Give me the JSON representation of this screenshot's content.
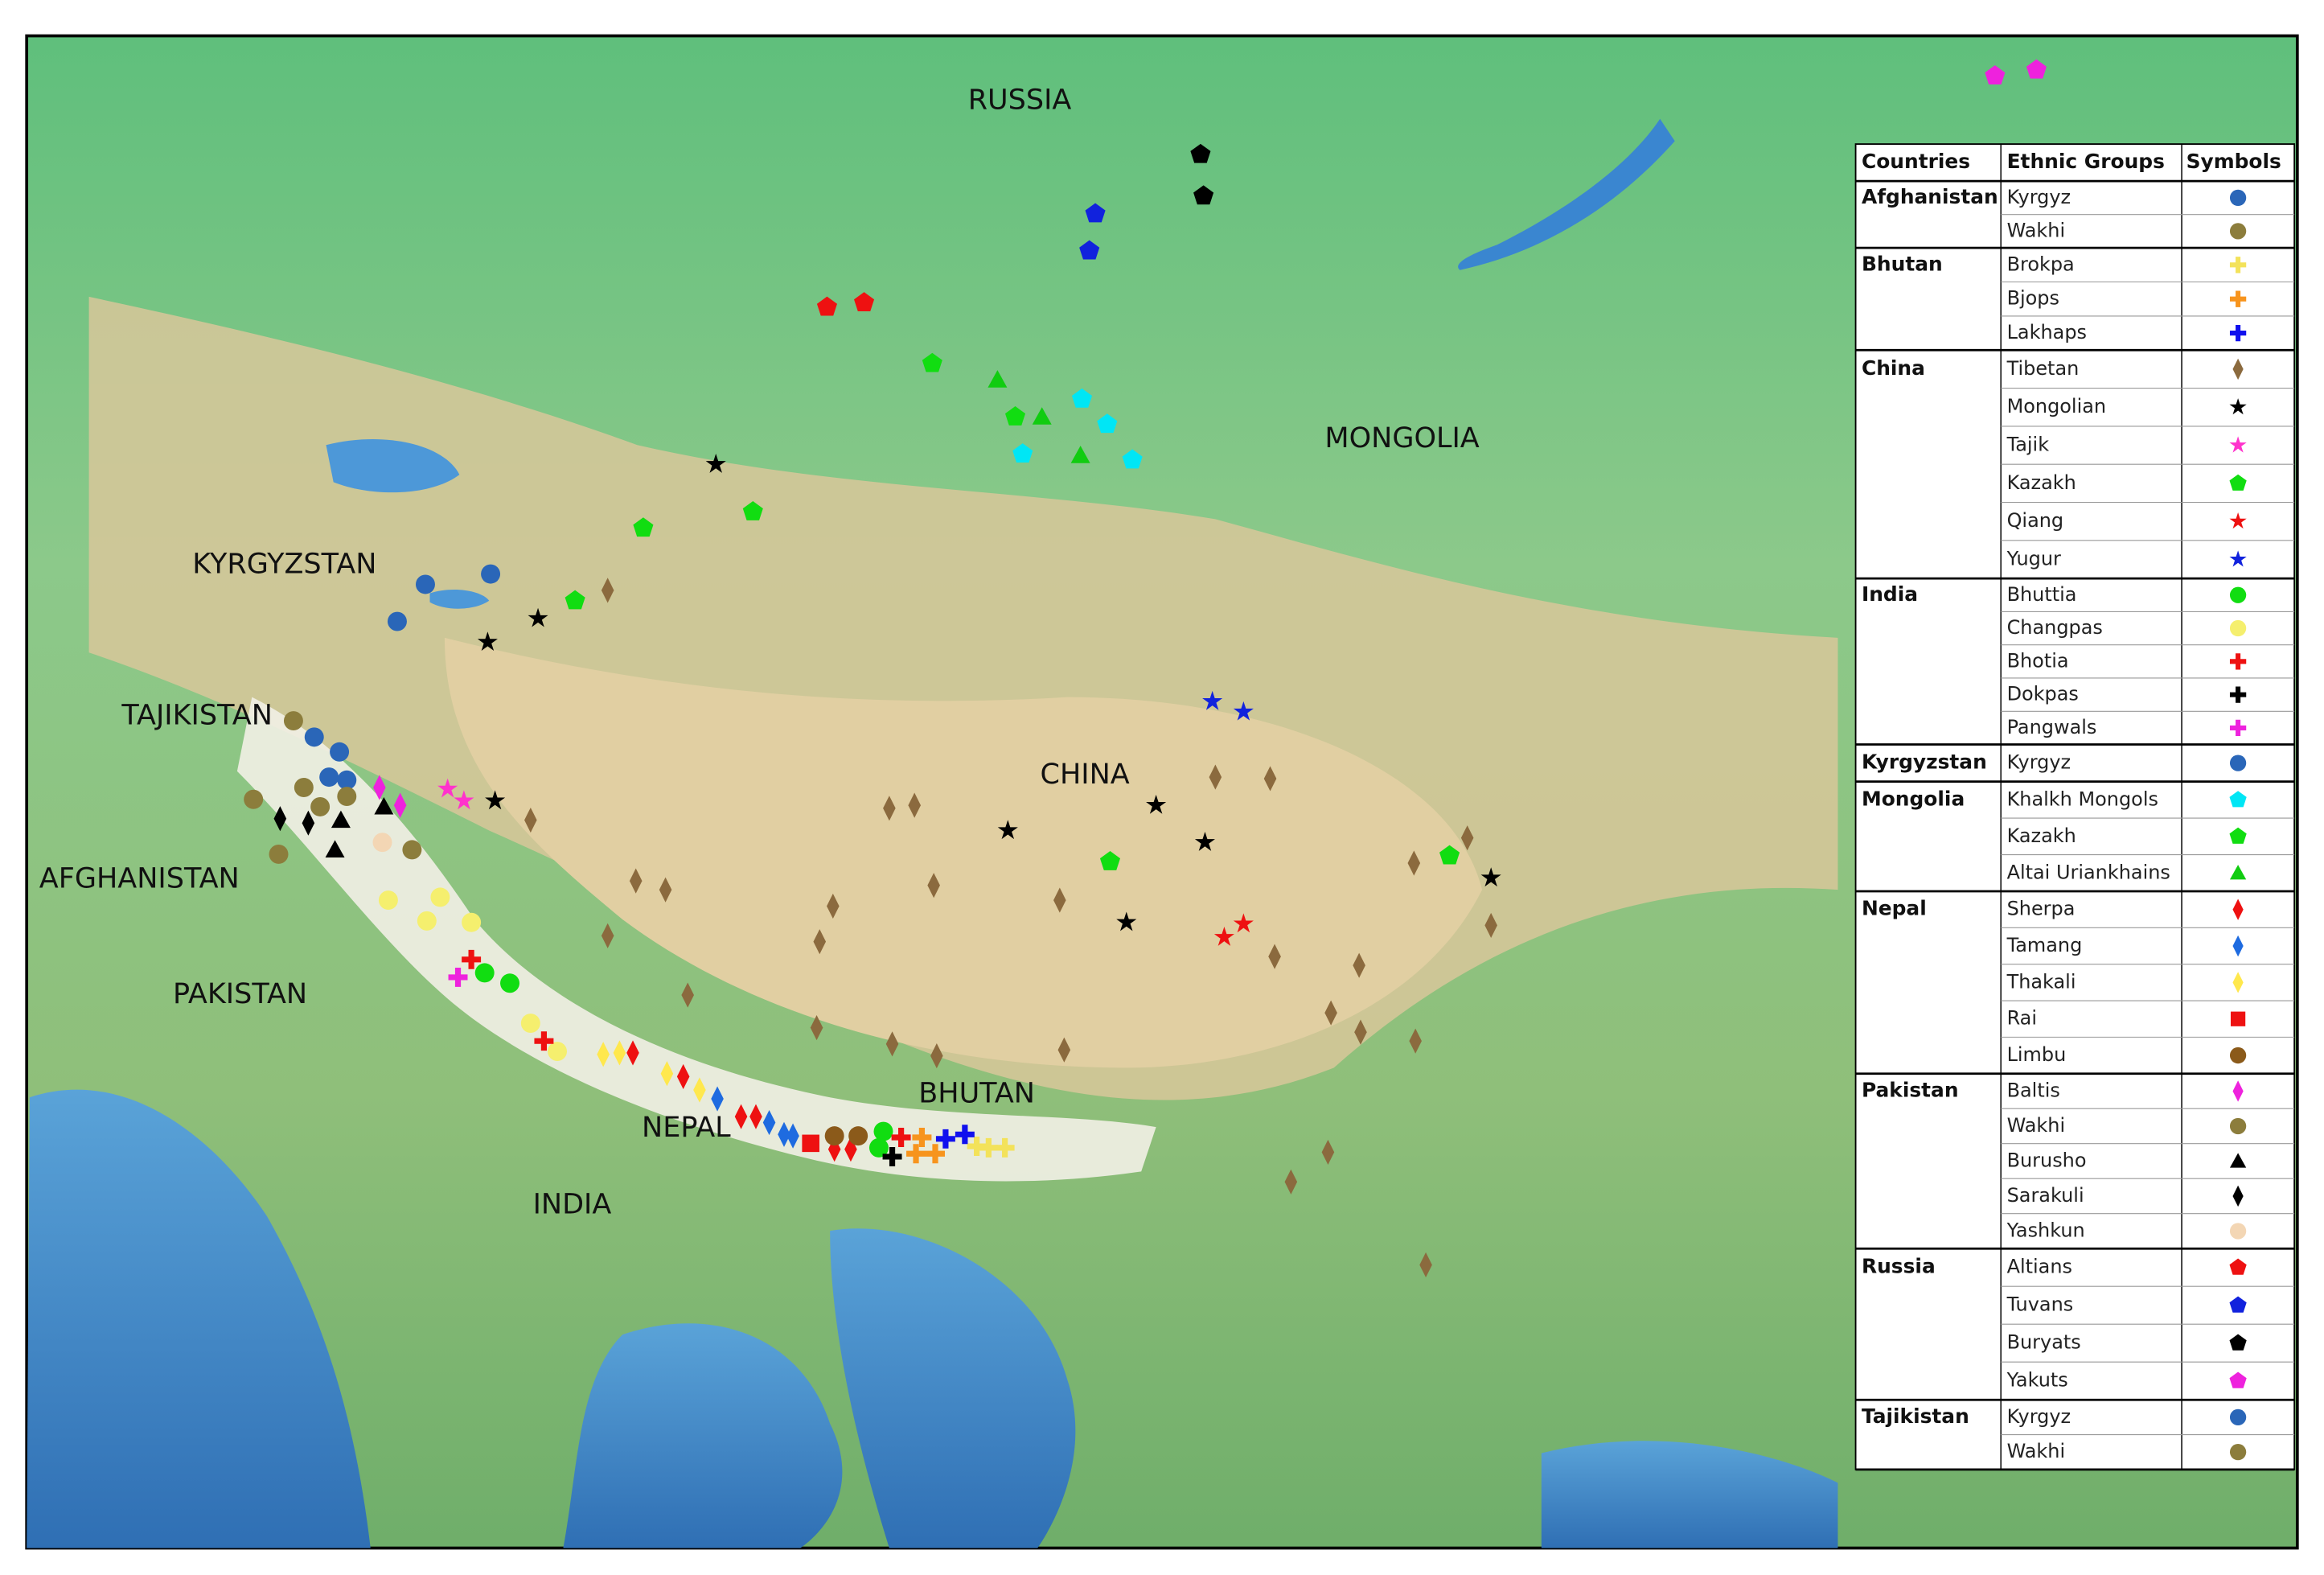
{
  "map_labels": [
    "RUSSIA",
    "MONGOLIA",
    "KYRGYZSTAN",
    "TAJIKISTAN",
    "AFGHANISTAN",
    "PAKISTAN",
    "CHINA",
    "BHUTAN",
    "NEPAL",
    "INDIA"
  ],
  "legend": {
    "headers": [
      "Countries",
      "Ethnic Groups",
      "Symbols"
    ],
    "countries": [
      {
        "name": "Afghanistan",
        "groups": [
          {
            "name": "Kyrgyz",
            "symbol": "circle",
            "color": "#2a66b8"
          },
          {
            "name": "Wakhi",
            "symbol": "circle",
            "color": "#8c7d3c"
          }
        ]
      },
      {
        "name": "Bhutan",
        "groups": [
          {
            "name": "Brokpa",
            "symbol": "plus",
            "color": "#f3e25a"
          },
          {
            "name": "Bjops",
            "symbol": "plus",
            "color": "#f7941d"
          },
          {
            "name": "Lakhaps",
            "symbol": "plus",
            "color": "#1010ee"
          }
        ]
      },
      {
        "name": "China",
        "groups": [
          {
            "name": "Tibetan",
            "symbol": "diamond",
            "color": "#8b6a3e"
          },
          {
            "name": "Mongolian",
            "symbol": "star",
            "color": "#000000"
          },
          {
            "name": "Tajik",
            "symbol": "star",
            "color": "#ff33cc"
          },
          {
            "name": "Kazakh",
            "symbol": "pentagon",
            "color": "#11dd11"
          },
          {
            "name": "Qiang",
            "symbol": "star",
            "color": "#ee1111"
          },
          {
            "name": "Yugur",
            "symbol": "star",
            "color": "#1122dd"
          }
        ]
      },
      {
        "name": "India",
        "groups": [
          {
            "name": "Bhuttia",
            "symbol": "circle",
            "color": "#11dd11"
          },
          {
            "name": "Changpas",
            "symbol": "circle",
            "color": "#f5ef6e"
          },
          {
            "name": "Bhotia",
            "symbol": "plus",
            "color": "#ee1111"
          },
          {
            "name": "Dokpas",
            "symbol": "plus",
            "color": "#000000"
          },
          {
            "name": "Pangwals",
            "symbol": "plus",
            "color": "#ee22dd"
          }
        ]
      },
      {
        "name": "Kyrgyzstan",
        "groups": [
          {
            "name": "Kyrgyz",
            "symbol": "circle",
            "color": "#2a66b8"
          }
        ]
      },
      {
        "name": "Mongolia",
        "groups": [
          {
            "name": "Khalkh Mongols",
            "symbol": "pentagon",
            "color": "#00e6f5"
          },
          {
            "name": "Kazakh",
            "symbol": "pentagon",
            "color": "#11dd11"
          },
          {
            "name": "Altai Uriankhains",
            "symbol": "triangle",
            "color": "#11cc11"
          }
        ]
      },
      {
        "name": "Nepal",
        "groups": [
          {
            "name": "Sherpa",
            "symbol": "diamond",
            "color": "#ee1111"
          },
          {
            "name": "Tamang",
            "symbol": "diamond",
            "color": "#1e6be0"
          },
          {
            "name": "Thakali",
            "symbol": "diamond",
            "color": "#ffe84d"
          },
          {
            "name": "Rai",
            "symbol": "square",
            "color": "#ee1111"
          },
          {
            "name": "Limbu",
            "symbol": "circle",
            "color": "#8b5a1a"
          }
        ]
      },
      {
        "name": "Pakistan",
        "groups": [
          {
            "name": "Baltis",
            "symbol": "diamond",
            "color": "#ee22dd"
          },
          {
            "name": "Wakhi",
            "symbol": "circle",
            "color": "#8c7d3c"
          },
          {
            "name": "Burusho",
            "symbol": "triangle",
            "color": "#000000"
          },
          {
            "name": "Sarakuli",
            "symbol": "diamond",
            "color": "#000000"
          },
          {
            "name": "Yashkun",
            "symbol": "circle",
            "color": "#f3d6b4"
          }
        ]
      },
      {
        "name": "Russia",
        "groups": [
          {
            "name": "Altians",
            "symbol": "pentagon",
            "color": "#ee1111"
          },
          {
            "name": "Tuvans",
            "symbol": "pentagon",
            "color": "#1122dd"
          },
          {
            "name": "Buryats",
            "symbol": "pentagon",
            "color": "#000000"
          },
          {
            "name": "Yakuts",
            "symbol": "pentagon",
            "color": "#ee22dd"
          }
        ]
      },
      {
        "name": "Tajikistan",
        "groups": [
          {
            "name": "Kyrgyz",
            "symbol": "circle",
            "color": "#2a66b8"
          },
          {
            "name": "Wakhi",
            "symbol": "circle",
            "color": "#8c7d3c"
          }
        ]
      }
    ]
  }
}
